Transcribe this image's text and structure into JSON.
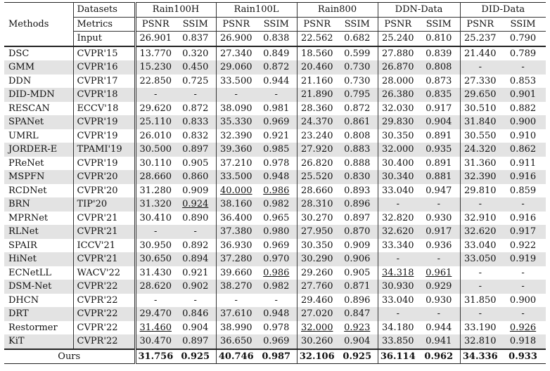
{
  "header": {
    "methods_label": "Methods",
    "datasets_label": "Datasets",
    "metrics_label": "Metrics",
    "input_label": "Input",
    "datasets": [
      "Rain100H",
      "Rain100L",
      "Rain800",
      "DDN-Data",
      "DID-Data"
    ],
    "metric_names": [
      "PSNR",
      "SSIM"
    ],
    "input_values": [
      "26.901",
      "0.837",
      "26.900",
      "0.838",
      "22.562",
      "0.682",
      "25.240",
      "0.810",
      "25.237",
      "0.790"
    ]
  },
  "rows": [
    {
      "method": "DSC",
      "venue": "CVPR'15",
      "values": [
        "13.770",
        "0.320",
        "27.340",
        "0.849",
        "18.560",
        "0.599",
        "27.880",
        "0.839",
        "21.440",
        "0.789"
      ],
      "underline": []
    },
    {
      "method": "GMM",
      "venue": "CVPR'16",
      "values": [
        "15.230",
        "0.450",
        "29.060",
        "0.872",
        "20.460",
        "0.730",
        "26.870",
        "0.808",
        "-",
        "-"
      ],
      "underline": []
    },
    {
      "method": "DDN",
      "venue": "CVPR'17",
      "values": [
        "22.850",
        "0.725",
        "33.500",
        "0.944",
        "21.160",
        "0.730",
        "28.000",
        "0.873",
        "27.330",
        "0.853"
      ],
      "underline": []
    },
    {
      "method": "DID-MDN",
      "venue": "CVPR'18",
      "values": [
        "-",
        "-",
        "-",
        "-",
        "21.890",
        "0.795",
        "26.380",
        "0.835",
        "29.650",
        "0.901"
      ],
      "underline": []
    },
    {
      "method": "RESCAN",
      "venue": "ECCV'18",
      "values": [
        "29.620",
        "0.872",
        "38.090",
        "0.981",
        "28.360",
        "0.872",
        "32.030",
        "0.917",
        "30.510",
        "0.882"
      ],
      "underline": []
    },
    {
      "method": "SPANet",
      "venue": "CVPR'19",
      "values": [
        "25.110",
        "0.833",
        "35.330",
        "0.969",
        "24.370",
        "0.861",
        "29.830",
        "0.904",
        "31.840",
        "0.900"
      ],
      "underline": []
    },
    {
      "method": "UMRL",
      "venue": "CVPR'19",
      "values": [
        "26.010",
        "0.832",
        "32.390",
        "0.921",
        "23.240",
        "0.808",
        "30.350",
        "0.891",
        "30.550",
        "0.910"
      ],
      "underline": []
    },
    {
      "method": "JORDER-E",
      "venue": "TPAMI'19",
      "values": [
        "30.500",
        "0.897",
        "39.360",
        "0.985",
        "27.920",
        "0.883",
        "32.000",
        "0.935",
        "24.320",
        "0.862"
      ],
      "underline": []
    },
    {
      "method": "PReNet",
      "venue": "CVPR'19",
      "values": [
        "30.110",
        "0.905",
        "37.210",
        "0.978",
        "26.820",
        "0.888",
        "30.400",
        "0.891",
        "31.360",
        "0.911"
      ],
      "underline": []
    },
    {
      "method": "MSPFN",
      "venue": "CVPR'20",
      "values": [
        "28.660",
        "0.860",
        "33.500",
        "0.948",
        "25.520",
        "0.830",
        "30.340",
        "0.881",
        "32.390",
        "0.916"
      ],
      "underline": []
    },
    {
      "method": "RCDNet",
      "venue": "CVPR'20",
      "values": [
        "31.280",
        "0.909",
        "40.000",
        "0.986",
        "28.660",
        "0.893",
        "33.040",
        "0.947",
        "29.810",
        "0.859"
      ],
      "underline": [
        2,
        3
      ]
    },
    {
      "method": "BRN",
      "venue": "TIP'20",
      "values": [
        "31.320",
        "0.924",
        "38.160",
        "0.982",
        "28.310",
        "0.896",
        "-",
        "-",
        "-",
        "-"
      ],
      "underline": [
        1
      ]
    },
    {
      "method": "MPRNet",
      "venue": "CVPR'21",
      "values": [
        "30.410",
        "0.890",
        "36.400",
        "0.965",
        "30.270",
        "0.897",
        "32.820",
        "0.930",
        "32.910",
        "0.916"
      ],
      "underline": []
    },
    {
      "method": "RLNet",
      "venue": "CVPR'21",
      "values": [
        "-",
        "-",
        "37.380",
        "0.980",
        "27.950",
        "0.870",
        "32.620",
        "0.917",
        "32.620",
        "0.917"
      ],
      "underline": []
    },
    {
      "method": "SPAIR",
      "venue": "ICCV'21",
      "values": [
        "30.950",
        "0.892",
        "36.930",
        "0.969",
        "30.350",
        "0.909",
        "33.340",
        "0.936",
        "33.040",
        "0.922"
      ],
      "underline": []
    },
    {
      "method": "HiNet",
      "venue": "CVPR'21",
      "values": [
        "30.650",
        "0.894",
        "37.280",
        "0.970",
        "30.290",
        "0.906",
        "-",
        "-",
        "33.050",
        "0.919"
      ],
      "underline": []
    },
    {
      "method": "ECNetLL",
      "venue": "WACV'22",
      "values": [
        "31.430",
        "0.921",
        "39.660",
        "0.986",
        "29.260",
        "0.905",
        "34.318",
        "0.961",
        "-",
        "-"
      ],
      "underline": [
        3,
        6,
        7
      ]
    },
    {
      "method": "DSM-Net",
      "venue": "CVPR'22",
      "values": [
        "28.620",
        "0.902",
        "38.270",
        "0.982",
        "27.760",
        "0.871",
        "30.930",
        "0.929",
        "-",
        "-"
      ],
      "underline": []
    },
    {
      "method": "DHCN",
      "venue": "CVPR'22",
      "values": [
        "-",
        "-",
        "-",
        "-",
        "29.460",
        "0.896",
        "33.040",
        "0.930",
        "31.850",
        "0.900"
      ],
      "underline": []
    },
    {
      "method": "DRT",
      "venue": "CVPR'22",
      "values": [
        "29.470",
        "0.846",
        "37.610",
        "0.948",
        "27.020",
        "0.847",
        "-",
        "-",
        "-",
        "-"
      ],
      "underline": []
    },
    {
      "method": "Restormer",
      "venue": "CVPR'22",
      "values": [
        "31.460",
        "0.904",
        "38.990",
        "0.978",
        "32.000",
        "0.923",
        "34.180",
        "0.944",
        "33.190",
        "0.926"
      ],
      "underline": [
        0,
        4,
        5,
        9
      ]
    },
    {
      "method": "KiT",
      "venue": "CVPR'22",
      "values": [
        "30.470",
        "0.897",
        "36.650",
        "0.969",
        "30.260",
        "0.904",
        "33.850",
        "0.941",
        "32.810",
        "0.918"
      ],
      "underline": []
    }
  ],
  "ours": {
    "label": "Ours",
    "values": [
      "31.756",
      "0.925",
      "40.746",
      "0.987",
      "32.106",
      "0.925",
      "36.114",
      "0.962",
      "34.336",
      "0.933"
    ]
  }
}
